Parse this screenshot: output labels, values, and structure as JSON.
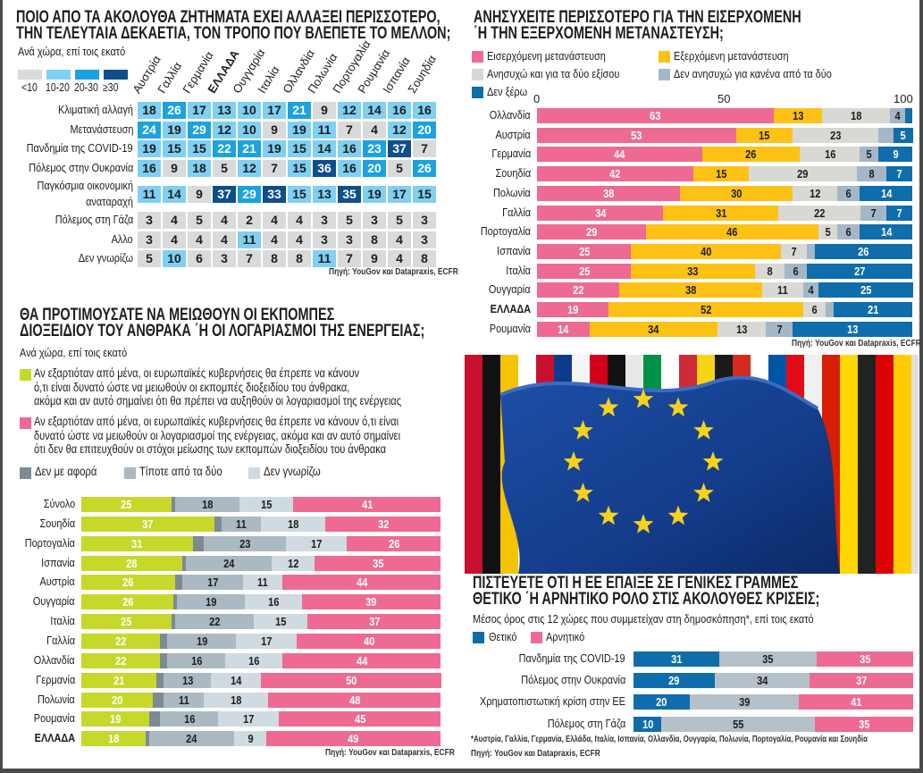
{
  "heatmap": {
    "title_lines": [
      "ΠΟΙΟ ΑΠΟ ΤΑ ΑΚΟΛΟΥΘΑ ΖΗΤΗΜΑΤΑ ΕΧΕΙ ΑΛΛΑΞΕΙ ΠΕΡΙΣΣΟΤΕΡΟ,",
      "ΤΗΝ ΤΕΛΕΥΤΑΙΑ ΔΕΚΑΕΤΙΑ, ΤΟΝ ΤΡΟΠΟ ΠΟΥ ΒΛΕΠΕΤΕ ΤΟ ΜΕΛΛΟΝ;"
    ],
    "subtitle": "Ανά χώρα, επί τοις εκατό",
    "legend": [
      {
        "label": "<10",
        "color": "#d9dadc"
      },
      {
        "label": "10-20",
        "color": "#7fd0f3"
      },
      {
        "label": "20-30",
        "color": "#1ba2df"
      },
      {
        "label": "≥30",
        "color": "#0d4f8c"
      }
    ],
    "source": "Πηγή: YouGov και Datapraxis, ECFR"
  },
  "chart_data": [
    {
      "type": "heatmap",
      "columns": [
        "Αυστρία",
        "Γαλλία",
        "Γερμανία",
        "ΕΛΛΑΔΑ",
        "Ουγγαρία",
        "Ιταλία",
        "Ολλανδία",
        "Πολωνία",
        "Πορτογαλία",
        "Ρουμανία",
        "Ισπανία",
        "Σουηδία"
      ],
      "rows": [
        {
          "label": [
            "Κλιματική αλλαγή"
          ],
          "values": [
            18,
            26,
            17,
            13,
            10,
            17,
            21,
            9,
            12,
            14,
            16,
            16
          ]
        },
        {
          "label": [
            "Μετανάστευση"
          ],
          "values": [
            24,
            19,
            29,
            12,
            10,
            9,
            19,
            11,
            7,
            4,
            12,
            20
          ]
        },
        {
          "label": [
            "Πανδημία της COVID-19"
          ],
          "values": [
            19,
            15,
            15,
            22,
            21,
            19,
            15,
            14,
            16,
            23,
            37,
            7
          ]
        },
        {
          "label": [
            "Πόλεμος στην Ουκρανία"
          ],
          "values": [
            16,
            9,
            18,
            5,
            12,
            7,
            15,
            36,
            16,
            20,
            5,
            26
          ]
        },
        {
          "label": [
            "Παγκόσμια οικονομική",
            "αναταραχή"
          ],
          "values": [
            11,
            14,
            9,
            37,
            29,
            33,
            15,
            13,
            35,
            19,
            17,
            15
          ]
        },
        {
          "label": [
            "Πόλεμος στη Γάζα"
          ],
          "values": [
            3,
            4,
            5,
            4,
            2,
            4,
            4,
            3,
            5,
            3,
            5,
            3
          ]
        },
        {
          "label": [
            "Αλλο"
          ],
          "values": [
            3,
            4,
            4,
            4,
            11,
            4,
            4,
            3,
            3,
            8,
            4,
            3
          ]
        },
        {
          "label": [
            "Δεν γνωρίζω"
          ],
          "values": [
            5,
            10,
            6,
            3,
            7,
            8,
            8,
            11,
            7,
            9,
            4,
            8
          ]
        }
      ]
    },
    {
      "type": "bar",
      "stacked": true,
      "orientation": "horizontal",
      "title_lines": [
        "ΑΝΗΣΥΧΕΙΤΕ ΠΕΡΙΣΣΟΤΕΡΟ ΓΙΑ ΤΗΝ ΕΙΣΕΡΧΟΜΕΝΗ",
        "΄Η ΤΗΝ ΕΞΕΡΧΟΜΕΝΗ ΜΕΤΑΝΑΣΤΕΥΣΗ;"
      ],
      "xlim": [
        0,
        100
      ],
      "xticks": [
        "0",
        "50",
        "100"
      ],
      "series": [
        {
          "name": "Εισερχόμενη μετανάστευση",
          "color": "#ee6a92"
        },
        {
          "name": "Εξερχόμενη μετανάστευση",
          "color": "#fdc214"
        },
        {
          "name": "Ανησυχώ και για τα δύο εξίσου",
          "color": "#d8d8d5"
        },
        {
          "name": "Δεν ανησυχώ για κανένα από τα δύο",
          "color": "#a3b7c6"
        },
        {
          "name": "Δεν ξέρω",
          "color": "#0f6dab"
        }
      ],
      "rows": [
        {
          "label": "Ολλανδία",
          "values": [
            63,
            13,
            18,
            4,
            null
          ]
        },
        {
          "label": "Αυστρία",
          "values": [
            53,
            15,
            23,
            null,
            5
          ]
        },
        {
          "label": "Γερμανία",
          "values": [
            44,
            26,
            16,
            5,
            9
          ]
        },
        {
          "label": "Σουηδία",
          "values": [
            42,
            15,
            29,
            8,
            7
          ]
        },
        {
          "label": "Πολωνία",
          "values": [
            38,
            30,
            12,
            6,
            14
          ]
        },
        {
          "label": "Γαλλία",
          "values": [
            34,
            31,
            22,
            7,
            7
          ]
        },
        {
          "label": "Πορτογαλία",
          "values": [
            29,
            46,
            5,
            6,
            14
          ]
        },
        {
          "label": "Ισπανία",
          "values": [
            25,
            40,
            7,
            null,
            26
          ]
        },
        {
          "label": "Ιταλία",
          "values": [
            25,
            33,
            8,
            6,
            27
          ]
        },
        {
          "label": "Ουγγαρία",
          "values": [
            22,
            38,
            11,
            4,
            25
          ]
        },
        {
          "label": "ΕΛΛΑΔΑ",
          "values": [
            19,
            52,
            6,
            null,
            21
          ],
          "bold": true
        },
        {
          "label": "Ρουμανία",
          "values": [
            14,
            34,
            13,
            7,
            13
          ]
        }
      ],
      "source": "Πηγή: YouGov και Datapraxis, ECFR"
    },
    {
      "type": "bar",
      "stacked": true,
      "orientation": "horizontal",
      "title_lines": [
        "ΘΑ ΠΡΟΤΙΜΟΥΣΑΤΕ ΝΑ ΜΕΙΩΘΟΥΝ ΟΙ ΕΚΠΟΜΠΕΣ",
        "ΔΙΟΞΕΙΔΙΟΥ ΤΟΥ ΑΝΘΡΑΚΑ ΄Η ΟΙ ΛΟΓΑΡΙΑΣΜΟΙ ΤΗΣ ΕΝΕΡΓΕΙΑΣ;"
      ],
      "subtitle": "Ανά χώρα, επί τοις εκατό",
      "series": [
        {
          "name": [
            "Αν εξαρτιόταν από μένα, οι ευρωπαϊκές κυβερνήσεις θα έπρεπε να κάνουν",
            "ό,τι είναι δυνατό ώστε να μειωθούν οι εκπομπές διοξειδίου του άνθρακα,",
            "ακόμα και αν αυτό σημαίνει ότι θα πρέπει να αυξηθούν οι λογαριασμοί της ενέργειας"
          ],
          "color": "#c6d92b"
        },
        {
          "name": "Δεν με αφορά",
          "color": "#7d8a94"
        },
        {
          "name": "Τίποτε από τα δύο",
          "color": "#abb9c3"
        },
        {
          "name": "Δεν γνωρίζω",
          "color": "#cfdae1"
        },
        {
          "name": [
            "Αν εξαρτιόταν από μένα, οι ευρωπαϊκές κυβερνήσεις θα έπρεπε να κάνουν ό,τι είναι",
            "δυνατό ώστε να μειωθούν οι λογαριασμοί της ενέργειας, ακόμα και αν αυτό σημαίνει",
            "ότι δεν θα επιτευχθούν οι στόχοι μείωσης των εκπομπών διοξειδίου του άνθρακα"
          ],
          "color": "#ee6a92"
        }
      ],
      "rows": [
        {
          "label": "Σύνολο",
          "values": [
            25,
            null,
            18,
            15,
            41
          ]
        },
        {
          "label": "Σουηδία",
          "values": [
            37,
            null,
            11,
            18,
            32
          ]
        },
        {
          "label": "Πορτογαλία",
          "values": [
            31,
            null,
            23,
            17,
            26
          ]
        },
        {
          "label": "Ισπανία",
          "values": [
            28,
            null,
            24,
            12,
            35
          ]
        },
        {
          "label": "Αυστρία",
          "values": [
            26,
            null,
            17,
            11,
            44
          ]
        },
        {
          "label": "Ουγγαρία",
          "values": [
            26,
            null,
            19,
            16,
            39
          ]
        },
        {
          "label": "Ιταλία",
          "values": [
            25,
            null,
            22,
            15,
            37
          ]
        },
        {
          "label": "Γαλλία",
          "values": [
            22,
            null,
            19,
            17,
            40
          ]
        },
        {
          "label": "Ολλανδία",
          "values": [
            22,
            null,
            16,
            16,
            44
          ]
        },
        {
          "label": "Γερμανία",
          "values": [
            21,
            null,
            13,
            14,
            50
          ]
        },
        {
          "label": "Πολωνία",
          "values": [
            20,
            null,
            11,
            18,
            48
          ]
        },
        {
          "label": "Ρουμανία",
          "values": [
            19,
            null,
            16,
            17,
            45
          ]
        },
        {
          "label": "ΕΛΛΑΔΑ",
          "values": [
            18,
            null,
            24,
            9,
            49
          ],
          "bold": true
        }
      ],
      "source": "Πηγή: YouGov και Dataparxis, ECFR"
    },
    {
      "type": "bar",
      "stacked": true,
      "orientation": "horizontal",
      "title_lines": [
        "ΠΙΣΤΕΥΕΤΕ ΟΤΙ Η ΕΕ ΕΠΑΙΞΕ ΣΕ ΓΕΝΙΚΕΣ ΓΡΑΜΜΕΣ",
        "ΘΕΤΙΚΟ ΄Η ΑΡΝΗΤΙΚΟ ΡΟΛΟ ΣΤΙΣ ΑΚΟΛΟΥΘΕΣ ΚΡΙΣΕΙΣ;"
      ],
      "subtitle": "Μέσος όρος στις 12 χώρες που συμμετείχαν στη δημοσκόπηση*, επί τοις εκατό",
      "series": [
        {
          "name": "Θετικό",
          "color": "#0f6dab"
        },
        {
          "name": "",
          "color": "#b5c1c9"
        },
        {
          "name": "Αρνητικό",
          "color": "#ee6a92"
        }
      ],
      "rows": [
        {
          "label": "Πανδημία της COVID-19",
          "values": [
            31,
            35,
            35
          ]
        },
        {
          "label": "Πόλεμος στην Ουκρανία",
          "values": [
            29,
            34,
            37
          ]
        },
        {
          "label": "Χρηματοπιστωτική κρίση στην ΕΕ",
          "values": [
            20,
            39,
            41
          ]
        },
        {
          "label": "Πόλεμος στη Γάζα",
          "values": [
            10,
            55,
            35
          ]
        }
      ],
      "footnote": "*Αυστρία, Γαλλία, Γερμανία, Ελλάδα, Ιταλία, Ισπανία, Ολλανδία, Ουγγαρία, Πολωνία, Πορτογαλία, Ρουμανία και Σουηδία",
      "source": "Πηγή: YouGov και Datapraxis, ECFR"
    }
  ]
}
